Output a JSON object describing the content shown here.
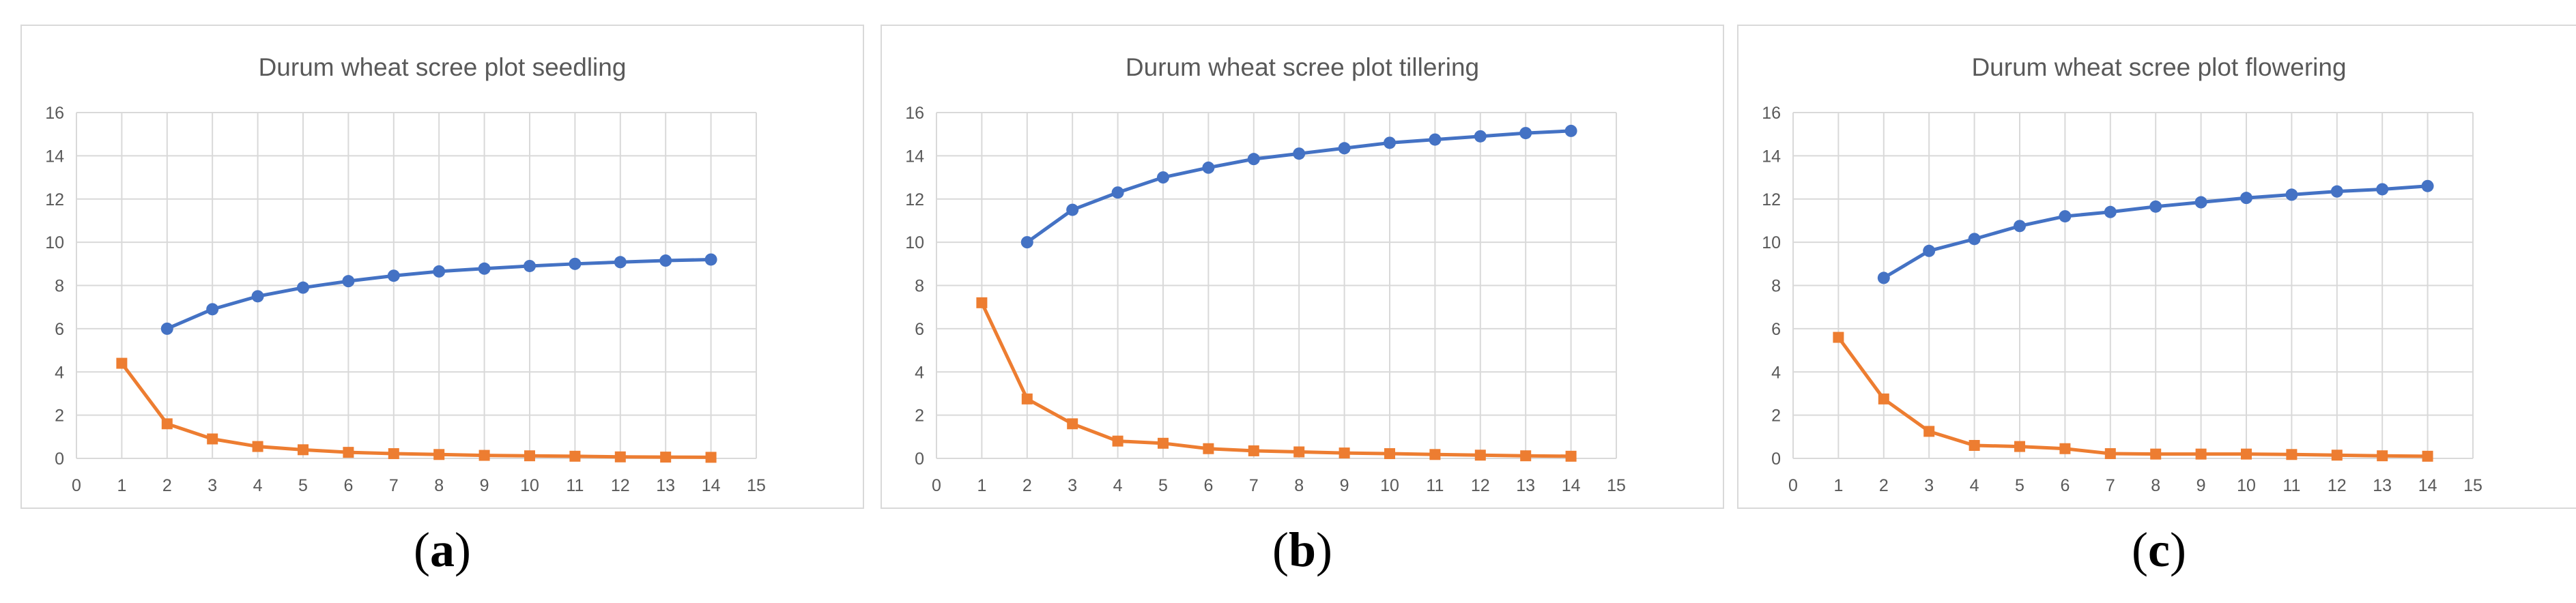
{
  "chart_data": [
    {
      "type": "line",
      "title": "Durum wheat scree plot seedling",
      "caption_letter": "a",
      "xlim": [
        0,
        15
      ],
      "ylim": [
        0,
        16
      ],
      "x_ticks": [
        0,
        1,
        2,
        3,
        4,
        5,
        6,
        7,
        8,
        9,
        10,
        11,
        12,
        13,
        14,
        15
      ],
      "y_ticks": [
        0,
        2,
        4,
        6,
        8,
        10,
        12,
        14,
        16
      ],
      "grid": true,
      "series": [
        {
          "color": "#4472c4",
          "marker": "circle",
          "x": [
            2,
            3,
            4,
            5,
            6,
            7,
            8,
            9,
            10,
            11,
            12,
            13,
            14
          ],
          "values": [
            6.0,
            6.9,
            7.5,
            7.9,
            8.2,
            8.45,
            8.65,
            8.78,
            8.9,
            9.0,
            9.08,
            9.15,
            9.2
          ]
        },
        {
          "color": "#ed7d31",
          "marker": "square",
          "x": [
            1,
            2,
            3,
            4,
            5,
            6,
            7,
            8,
            9,
            10,
            11,
            12,
            13,
            14
          ],
          "values": [
            4.4,
            1.6,
            0.9,
            0.55,
            0.4,
            0.28,
            0.22,
            0.18,
            0.14,
            0.12,
            0.1,
            0.07,
            0.06,
            0.05
          ]
        }
      ]
    },
    {
      "type": "line",
      "title": "Durum wheat scree plot tillering",
      "caption_letter": "b",
      "xlim": [
        0,
        15
      ],
      "ylim": [
        0,
        16
      ],
      "x_ticks": [
        0,
        1,
        2,
        3,
        4,
        5,
        6,
        7,
        8,
        9,
        10,
        11,
        12,
        13,
        14,
        15
      ],
      "y_ticks": [
        0,
        2,
        4,
        6,
        8,
        10,
        12,
        14,
        16
      ],
      "grid": true,
      "series": [
        {
          "color": "#4472c4",
          "marker": "circle",
          "x": [
            2,
            3,
            4,
            5,
            6,
            7,
            8,
            9,
            10,
            11,
            12,
            13,
            14
          ],
          "values": [
            10.0,
            11.5,
            12.3,
            13.0,
            13.45,
            13.85,
            14.1,
            14.35,
            14.6,
            14.75,
            14.9,
            15.05,
            15.15
          ]
        },
        {
          "color": "#ed7d31",
          "marker": "square",
          "x": [
            1,
            2,
            3,
            4,
            5,
            6,
            7,
            8,
            9,
            10,
            11,
            12,
            13,
            14
          ],
          "values": [
            7.2,
            2.75,
            1.6,
            0.8,
            0.7,
            0.45,
            0.35,
            0.3,
            0.25,
            0.22,
            0.18,
            0.15,
            0.12,
            0.1
          ]
        }
      ]
    },
    {
      "type": "line",
      "title": "Durum wheat scree plot flowering",
      "caption_letter": "c",
      "xlim": [
        0,
        15
      ],
      "ylim": [
        0,
        16
      ],
      "x_ticks": [
        0,
        1,
        2,
        3,
        4,
        5,
        6,
        7,
        8,
        9,
        10,
        11,
        12,
        13,
        14,
        15
      ],
      "y_ticks": [
        0,
        2,
        4,
        6,
        8,
        10,
        12,
        14,
        16
      ],
      "grid": true,
      "series": [
        {
          "color": "#4472c4",
          "marker": "circle",
          "x": [
            2,
            3,
            4,
            5,
            6,
            7,
            8,
            9,
            10,
            11,
            12,
            13,
            14
          ],
          "values": [
            8.35,
            9.6,
            10.15,
            10.75,
            11.2,
            11.4,
            11.65,
            11.85,
            12.05,
            12.2,
            12.35,
            12.45,
            12.6
          ]
        },
        {
          "color": "#ed7d31",
          "marker": "square",
          "x": [
            1,
            2,
            3,
            4,
            5,
            6,
            7,
            8,
            9,
            10,
            11,
            12,
            13,
            14
          ],
          "values": [
            5.6,
            2.75,
            1.25,
            0.6,
            0.55,
            0.45,
            0.22,
            0.2,
            0.2,
            0.2,
            0.18,
            0.15,
            0.12,
            0.1
          ]
        }
      ]
    }
  ]
}
